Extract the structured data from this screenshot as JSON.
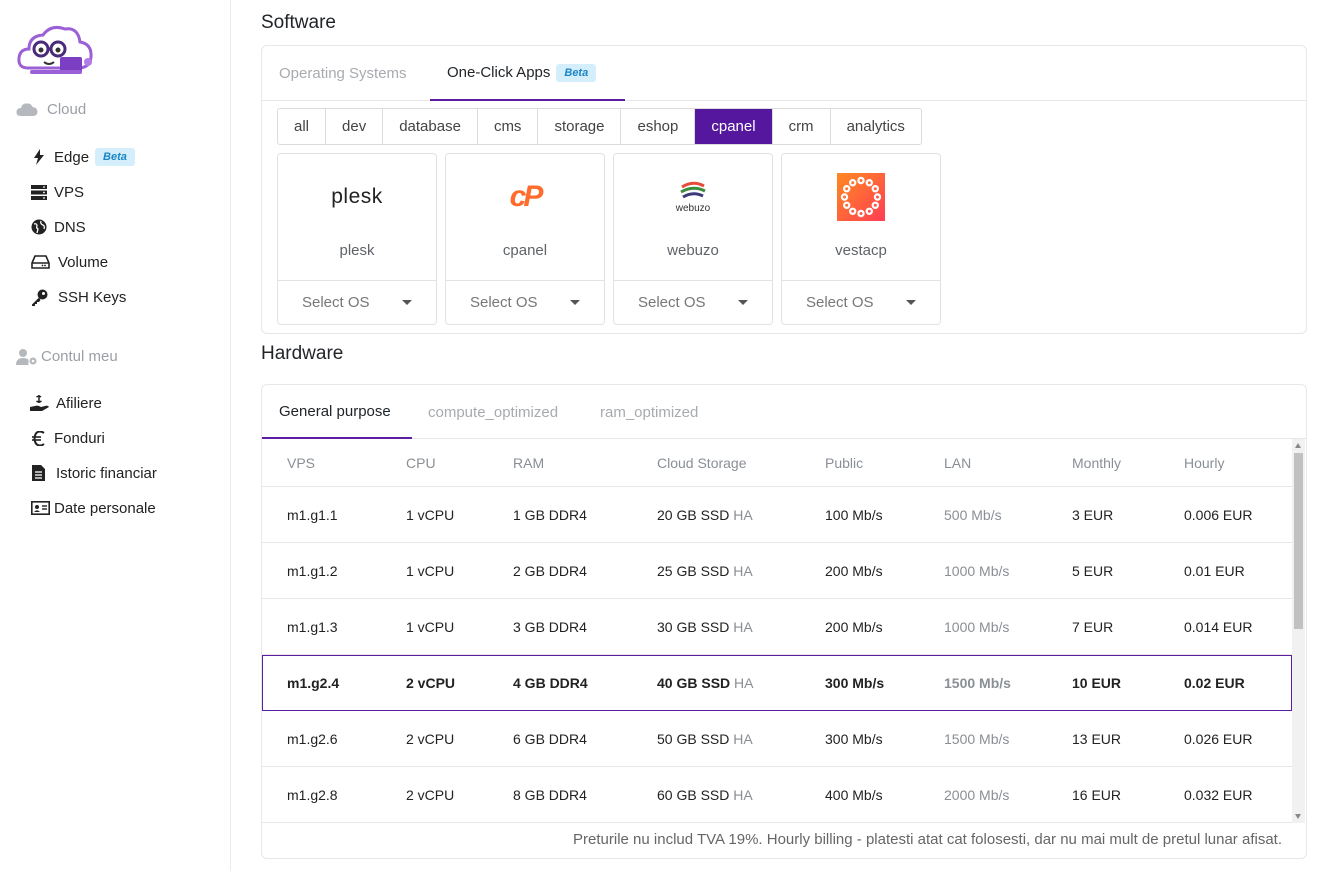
{
  "sidebar": {
    "cloud_title": "Cloud",
    "cloud_items": [
      {
        "label": "Edge",
        "badge": "Beta",
        "icon": "bolt-icon"
      },
      {
        "label": "VPS",
        "icon": "server-icon"
      },
      {
        "label": "DNS",
        "icon": "globe-icon"
      },
      {
        "label": "Volume",
        "icon": "hdd-icon"
      },
      {
        "label": "SSH Keys",
        "icon": "key-icon"
      }
    ],
    "account_title": "Contul meu",
    "account_items": [
      {
        "label": "Afiliere",
        "icon": "hand-money-icon"
      },
      {
        "label": "Fonduri",
        "icon": "euro-icon"
      },
      {
        "label": "Istoric financiar",
        "icon": "invoice-icon"
      },
      {
        "label": "Date personale",
        "icon": "id-card-icon"
      }
    ]
  },
  "software": {
    "title": "Software",
    "tabs": [
      {
        "label": "Operating Systems"
      },
      {
        "label": "One-Click Apps",
        "badge": "Beta"
      }
    ],
    "filters": [
      "all",
      "dev",
      "database",
      "cms",
      "storage",
      "eshop",
      "cpanel",
      "crm",
      "analytics"
    ],
    "active_filter": "cpanel",
    "apps": [
      {
        "name": "plesk",
        "logo_text": "plesk",
        "select": "Select OS"
      },
      {
        "name": "cpanel",
        "logo_text": "cP",
        "select": "Select OS"
      },
      {
        "name": "webuzo",
        "logo_text": "webuzo",
        "select": "Select OS"
      },
      {
        "name": "vestacp",
        "logo_text": "",
        "select": "Select OS"
      }
    ],
    "colors": {
      "accent": "#54179d",
      "cpanel": "#ff6c2c",
      "vesta": "#ff5f2e"
    }
  },
  "hardware": {
    "title": "Hardware",
    "tabs": [
      "General purpose",
      "compute_optimized",
      "ram_optimized"
    ],
    "columns": [
      "VPS",
      "CPU",
      "RAM",
      "Cloud Storage",
      "Public",
      "LAN",
      "Monthly",
      "Hourly"
    ],
    "rows": [
      {
        "vps": "m1.g1.1",
        "cpu": "1 vCPU",
        "ram": "1 GB DDR4",
        "storage": "20 GB SSD",
        "ha": "HA",
        "public": "100 Mb/s",
        "lan": "500 Mb/s",
        "monthly": "3 EUR",
        "hourly": "0.006 EUR"
      },
      {
        "vps": "m1.g1.2",
        "cpu": "1 vCPU",
        "ram": "2 GB DDR4",
        "storage": "25 GB SSD",
        "ha": "HA",
        "public": "200 Mb/s",
        "lan": "1000 Mb/s",
        "monthly": "5 EUR",
        "hourly": "0.01 EUR"
      },
      {
        "vps": "m1.g1.3",
        "cpu": "1 vCPU",
        "ram": "3 GB DDR4",
        "storage": "30 GB SSD",
        "ha": "HA",
        "public": "200 Mb/s",
        "lan": "1000 Mb/s",
        "monthly": "7 EUR",
        "hourly": "0.014 EUR"
      },
      {
        "vps": "m1.g2.4",
        "cpu": "2 vCPU",
        "ram": "4 GB DDR4",
        "storage": "40 GB SSD",
        "ha": "HA",
        "public": "300 Mb/s",
        "lan": "1500 Mb/s",
        "monthly": "10 EUR",
        "hourly": "0.02 EUR"
      },
      {
        "vps": "m1.g2.6",
        "cpu": "2 vCPU",
        "ram": "6 GB DDR4",
        "storage": "50 GB SSD",
        "ha": "HA",
        "public": "300 Mb/s",
        "lan": "1500 Mb/s",
        "monthly": "13 EUR",
        "hourly": "0.026 EUR"
      },
      {
        "vps": "m1.g2.8",
        "cpu": "2 vCPU",
        "ram": "8 GB DDR4",
        "storage": "60 GB SSD",
        "ha": "HA",
        "public": "400 Mb/s",
        "lan": "2000 Mb/s",
        "monthly": "16 EUR",
        "hourly": "0.032 EUR"
      }
    ],
    "selected_row": "m1.g2.4",
    "note": "Preturile nu includ TVA 19%. Hourly billing - platesti atat cat folosesti, dar nu mai mult de pretul lunar afisat."
  }
}
